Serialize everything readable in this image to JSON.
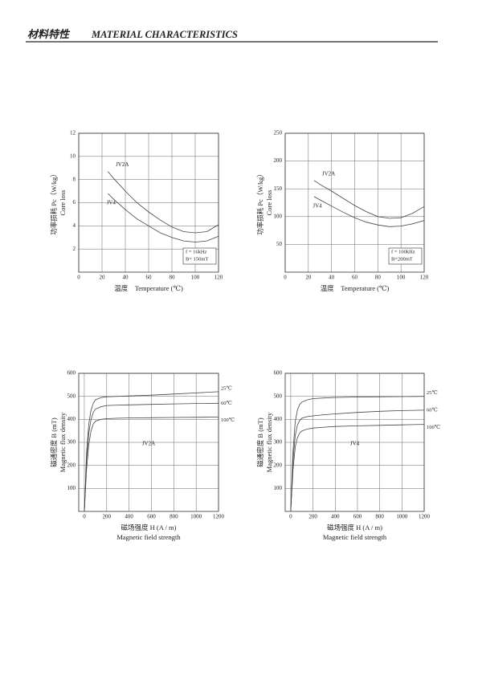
{
  "header": {
    "cn": "材料特性",
    "en": "MATERIAL CHARACTERISTICS"
  },
  "chart_data": [
    {
      "type": "line",
      "xlabel": "温度　Temperature (℃)",
      "ylabel": [
        "功率损耗 Pc（W/kg）",
        "Core  loss"
      ],
      "x": [
        25,
        30,
        40,
        50,
        60,
        70,
        80,
        90,
        100,
        110,
        120
      ],
      "series": [
        {
          "name": "JV2A",
          "color": "#444444",
          "values": [
            8.7,
            8.1,
            7.0,
            6.0,
            5.2,
            4.5,
            3.9,
            3.5,
            3.4,
            3.5,
            4.1
          ]
        },
        {
          "name": "JV4",
          "color": "#444444",
          "values": [
            6.8,
            6.3,
            5.4,
            4.6,
            4.0,
            3.4,
            3.0,
            2.7,
            2.6,
            2.7,
            3.1
          ]
        }
      ],
      "xlim": [
        0,
        120
      ],
      "ylim": [
        0,
        12
      ],
      "xticks": [
        0,
        20,
        40,
        60,
        80,
        100,
        120
      ],
      "yticks": [
        2,
        4,
        6,
        8,
        10,
        12
      ],
      "annotations": [
        "f = 16kHz",
        "B= 150mT"
      ],
      "grid": true
    },
    {
      "type": "line",
      "xlabel": "温度　Temperature (℃)",
      "ylabel": [
        "功率损耗 Pc（W/kg）",
        "Core  loss"
      ],
      "x": [
        25,
        30,
        40,
        50,
        60,
        70,
        80,
        90,
        100,
        110,
        120
      ],
      "series": [
        {
          "name": "JV2A",
          "color": "#444444",
          "values": [
            165,
            158,
            146,
            133,
            120,
            109,
            100,
            97,
            98,
            106,
            118
          ]
        },
        {
          "name": "JV4",
          "color": "#444444",
          "values": [
            136,
            130,
            119,
            108,
            98,
            90,
            85,
            82,
            83,
            87,
            93
          ]
        }
      ],
      "xlim": [
        0,
        120
      ],
      "ylim": [
        0,
        250
      ],
      "xticks": [
        0,
        20,
        40,
        60,
        80,
        100,
        120
      ],
      "yticks": [
        50,
        100,
        150,
        200,
        250
      ],
      "annotations": [
        "f = 100kHz",
        "B=200mT"
      ],
      "grid": true
    },
    {
      "type": "line",
      "label": "JV2A",
      "xlabel": "磁场强度  H  (A / m)",
      "xlabel2": "Magnetic  field  strength",
      "ylabel": [
        "磁通密度  B  (mT)",
        "Magnetic  flux  density"
      ],
      "x": [
        0,
        20,
        40,
        60,
        80,
        100,
        150,
        200,
        300,
        400,
        600,
        800,
        1000,
        1200
      ],
      "series": [
        {
          "name": "25℃",
          "color": "#444444",
          "values": [
            0,
            250,
            380,
            440,
            470,
            485,
            495,
            498,
            500,
            502,
            505,
            510,
            515,
            520
          ]
        },
        {
          "name": "60℃",
          "color": "#444444",
          "values": [
            0,
            220,
            340,
            400,
            430,
            445,
            455,
            460,
            462,
            463,
            465,
            467,
            469,
            470
          ]
        },
        {
          "name": "100℃",
          "color": "#444444",
          "values": [
            0,
            180,
            290,
            350,
            380,
            392,
            400,
            403,
            405,
            406,
            407,
            408,
            409,
            410
          ]
        }
      ],
      "xlim": [
        -50,
        1200
      ],
      "ylim": [
        0,
        600
      ],
      "xticks": [
        0,
        200,
        400,
        600,
        800,
        1000,
        1200
      ],
      "yticks": [
        100,
        200,
        300,
        400,
        500,
        600
      ],
      "grid": true
    },
    {
      "type": "line",
      "label": "JV4",
      "xlabel": "磁场强度  H  (A / m)",
      "xlabel2": "Magnetic  field  strength",
      "ylabel": [
        "磁通密度  B  (mT)",
        "Magnetic  flux  density"
      ],
      "x": [
        0,
        20,
        40,
        60,
        80,
        100,
        150,
        200,
        300,
        400,
        600,
        800,
        1000,
        1200
      ],
      "series": [
        {
          "name": "25℃",
          "color": "#444444",
          "values": [
            0,
            260,
            390,
            440,
            465,
            475,
            485,
            490,
            493,
            495,
            497,
            498,
            499,
            500
          ]
        },
        {
          "name": "60℃",
          "color": "#444444",
          "values": [
            0,
            220,
            330,
            375,
            395,
            405,
            412,
            415,
            420,
            424,
            430,
            435,
            438,
            440
          ]
        },
        {
          "name": "100℃",
          "color": "#444444",
          "values": [
            0,
            180,
            280,
            320,
            340,
            350,
            358,
            362,
            366,
            369,
            372,
            374,
            376,
            378
          ]
        }
      ],
      "xlim": [
        -50,
        1200
      ],
      "ylim": [
        0,
        600
      ],
      "xticks": [
        0,
        200,
        400,
        600,
        800,
        1000,
        1200
      ],
      "yticks": [
        100,
        200,
        300,
        400,
        500,
        600
      ],
      "grid": true
    }
  ]
}
